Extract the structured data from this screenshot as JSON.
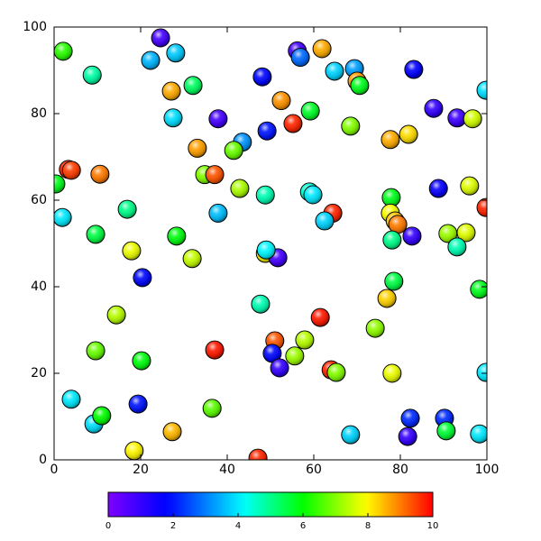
{
  "chart_data": {
    "type": "scatter",
    "x": [
      2.1,
      24.6,
      22.3,
      28.1,
      8.8,
      32.1,
      27.1,
      27.5,
      37.9,
      33.1,
      43.5,
      41.5,
      48.1,
      49.2,
      52.5,
      56.2,
      56.9,
      61.9,
      64.8,
      69.4,
      70,
      70.6,
      59.2,
      55.2,
      68.5,
      83.1,
      87.7,
      93.1,
      96.7,
      99.8,
      77.7,
      81.9,
      3.3,
      4,
      10.6,
      0.4,
      1.9,
      34.8,
      37.1,
      42.9,
      48.8,
      59,
      59.8,
      64.4,
      62.5,
      16.9,
      37.9,
      9.6,
      17.9,
      20.4,
      28.3,
      31.9,
      77.9,
      77.7,
      78.8,
      79.4,
      82.7,
      78.1,
      88.8,
      96,
      99.8,
      91,
      95.2,
      93.1,
      48.8,
      51.7,
      49,
      78.5,
      76.9,
      98.3,
      14.4,
      47.7,
      61.5,
      74.2,
      9.6,
      20.2,
      37.1,
      51,
      50.4,
      52.1,
      57.9,
      55.6,
      64,
      65.2,
      78.1,
      99.8,
      3.96,
      9.2,
      11,
      19.4,
      36.5,
      27.3,
      18.5,
      47.1,
      68.5,
      82.3,
      81.7,
      90.2,
      90.6,
      98.3
    ],
    "values": [
      94.4,
      97.5,
      92.3,
      94,
      88.9,
      86.5,
      85.2,
      79,
      78.8,
      72,
      73.4,
      71.5,
      88.5,
      76,
      83,
      94.5,
      93,
      95,
      89.8,
      90.4,
      87.5,
      86.5,
      80.6,
      77.7,
      77.1,
      90.2,
      81.2,
      79,
      78.8,
      85.4,
      74,
      75.2,
      67.1,
      66.9,
      66,
      63.75,
      56,
      65.9,
      65.9,
      62.7,
      61.2,
      61.9,
      61.25,
      57,
      55.2,
      57.9,
      57,
      52.1,
      48.3,
      42.1,
      51.7,
      46.5,
      60.6,
      57,
      55.2,
      54.4,
      51.7,
      50.8,
      62.7,
      63.3,
      58.3,
      52.3,
      52.5,
      49.2,
      47.7,
      46.7,
      48.5,
      41.25,
      37.3,
      39.4,
      33.5,
      36,
      32.9,
      30.4,
      25.2,
      22.9,
      25.4,
      27.5,
      24.6,
      21.25,
      27.7,
      24,
      20.8,
      20.2,
      20,
      20.2,
      14,
      8.3,
      10.2,
      12.9,
      11.9,
      6.5,
      2.1,
      0.4,
      5.8,
      9.6,
      5.4,
      9.6,
      6.7,
      6
    ],
    "color_values": [
      6.3,
      0.8,
      3.5,
      3.7,
      4.8,
      5.3,
      8.6,
      3.9,
      0.8,
      8.7,
      3.2,
      6.8,
      1.8,
      2,
      8.8,
      0.8,
      2.8,
      8.6,
      3.8,
      3.3,
      8.7,
      5.8,
      5.7,
      9.7,
      7,
      1.7,
      1,
      0.9,
      7.6,
      3.9,
      8.6,
      8.2,
      9.7,
      9.5,
      9,
      5.8,
      4,
      7,
      9.3,
      7.3,
      4.7,
      4.5,
      4,
      9.7,
      3.8,
      5,
      3.6,
      5.5,
      7.8,
      1.8,
      5.9,
      7.5,
      5.8,
      7.9,
      8.4,
      9,
      1,
      5,
      1.6,
      7.7,
      9.7,
      7.2,
      7.7,
      4.7,
      8,
      0.8,
      4.1,
      5.5,
      8.3,
      5.8,
      7.4,
      4.7,
      9.8,
      7.1,
      6.8,
      5.9,
      9.8,
      9.3,
      1.8,
      1,
      7.4,
      7.2,
      9.7,
      7,
      7.8,
      4,
      4,
      3.9,
      6,
      2,
      6.7,
      8.5,
      8,
      9.7,
      3.8,
      2.2,
      1,
      2.2,
      5.6,
      4
    ],
    "colormap": "rainbow",
    "xlim": [
      0,
      100
    ],
    "xticks": [
      0,
      20,
      40,
      60,
      80,
      100
    ],
    "ylim": [
      0,
      100
    ],
    "yticks": [
      0,
      20,
      40,
      60,
      80,
      100
    ],
    "clim": [
      0,
      10
    ],
    "cticks": [
      0,
      2,
      4,
      6,
      8,
      10
    ]
  }
}
